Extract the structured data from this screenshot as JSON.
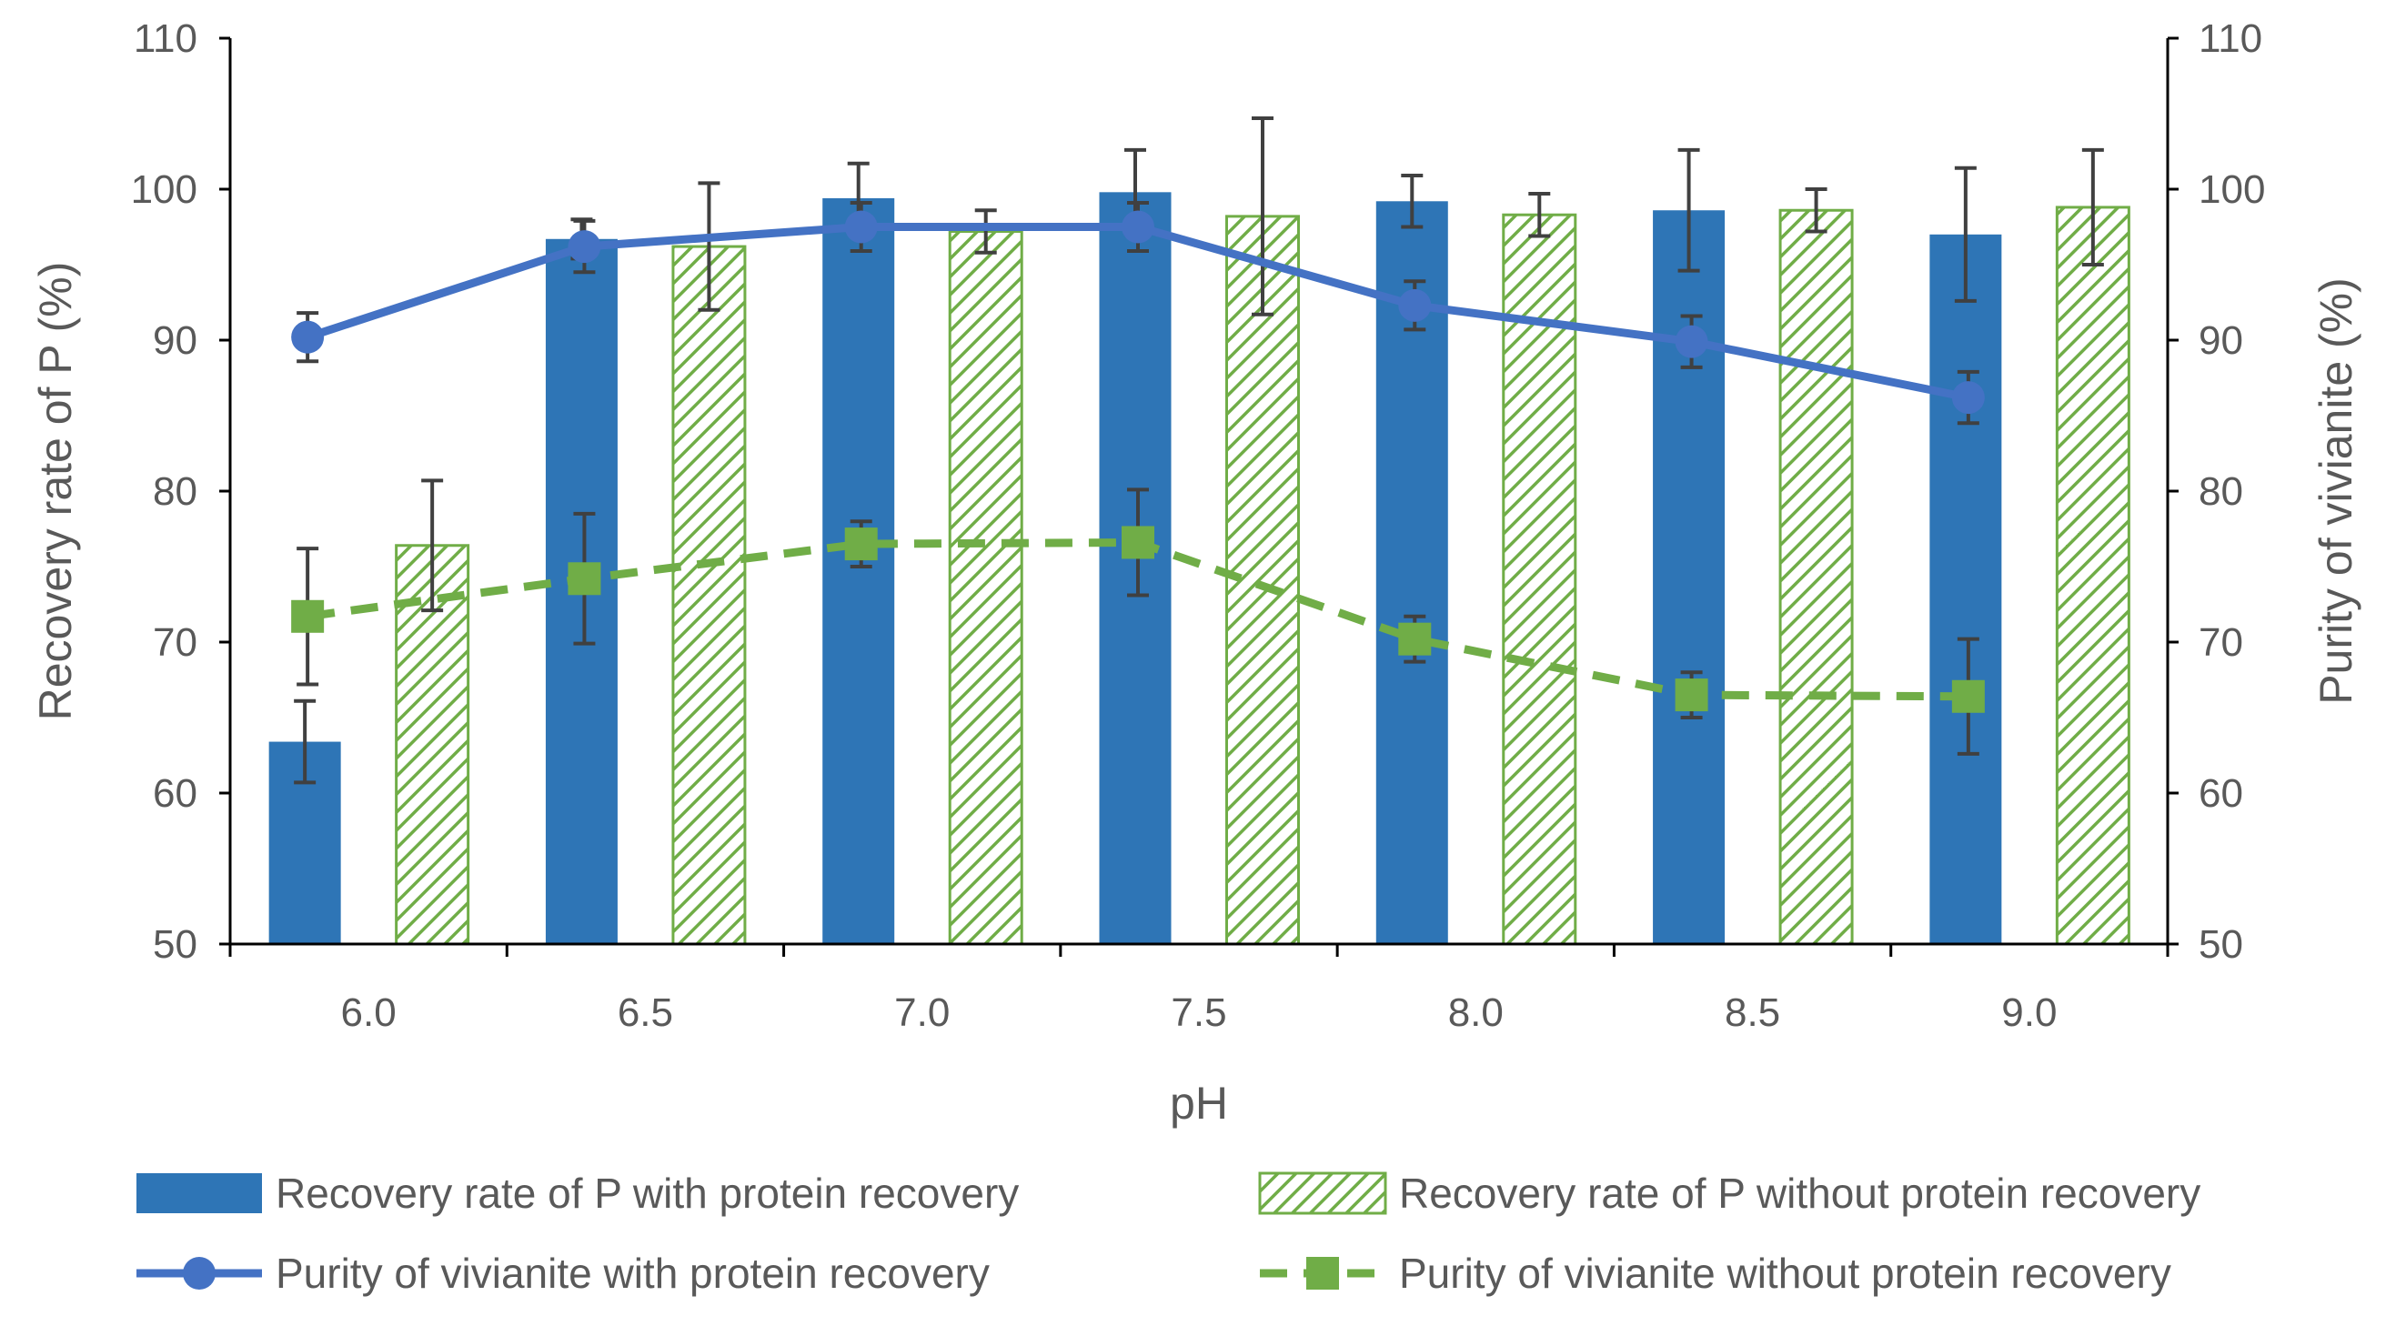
{
  "chart_data": {
    "type": "bar",
    "xlabel": "pH",
    "ylabel": "Recovery rate of P (%)",
    "y2label": "Purity of vivianite (%)",
    "ylim": [
      50,
      110
    ],
    "y2lim": [
      50,
      110
    ],
    "yticks": [
      50,
      60,
      70,
      80,
      90,
      100,
      110
    ],
    "grid": false,
    "categories": [
      "6.0",
      "6.5",
      "7.0",
      "7.5",
      "8.0",
      "8.5",
      "9.0"
    ],
    "series": [
      {
        "name": "Recovery rate of P with protein recovery",
        "kind": "bar",
        "axis": "left",
        "color": "#2E75B6",
        "values": [
          63.4,
          96.7,
          99.4,
          99.8,
          99.2,
          98.6,
          97.0
        ],
        "errors": [
          2.7,
          1.3,
          2.3,
          2.8,
          1.7,
          4.0,
          4.4
        ]
      },
      {
        "name": "Recovery rate of P without protein recovery",
        "kind": "bar-hatched",
        "axis": "left",
        "color": "#70AD47",
        "values": [
          76.4,
          96.2,
          97.2,
          98.2,
          98.3,
          98.6,
          98.8
        ],
        "errors": [
          4.3,
          4.2,
          1.4,
          6.5,
          1.4,
          1.4,
          3.8
        ]
      },
      {
        "name": "Purity of vivianite with protein recovery",
        "kind": "line",
        "axis": "right",
        "color": "#4472C4",
        "marker": "circle",
        "values": [
          90.2,
          96.2,
          97.5,
          97.5,
          92.3,
          89.9,
          86.2
        ],
        "errors": [
          1.6,
          1.7,
          1.6,
          1.6,
          1.6,
          1.7,
          1.7
        ]
      },
      {
        "name": "Purity of vivianite without protein recovery",
        "kind": "line-dashed",
        "axis": "right",
        "color": "#70AD47",
        "marker": "square",
        "values": [
          71.7,
          74.2,
          76.5,
          76.6,
          70.2,
          66.5,
          66.4
        ],
        "errors": [
          4.5,
          4.3,
          1.5,
          3.5,
          1.5,
          1.5,
          3.8
        ]
      }
    ],
    "legend": "bottom"
  }
}
